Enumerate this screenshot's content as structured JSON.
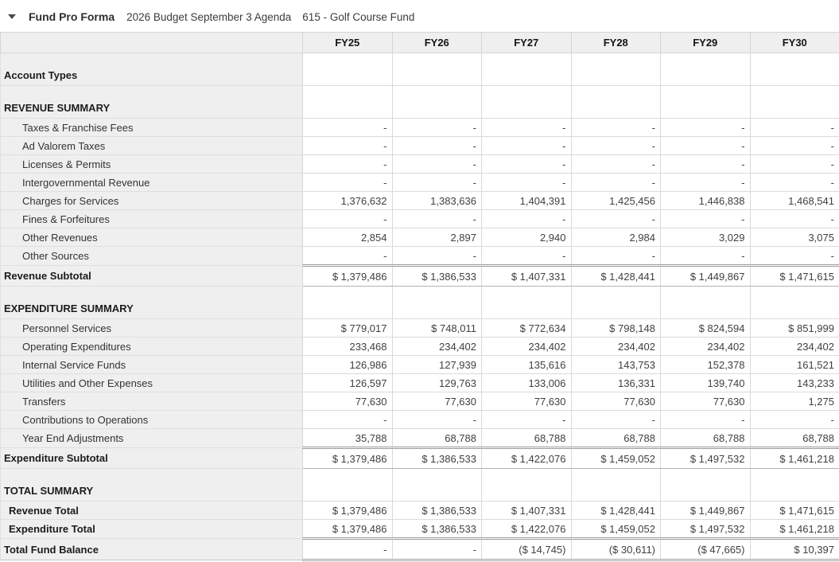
{
  "header": {
    "collapse_icon": "triangle-down",
    "title": "Fund Pro Forma",
    "budget_name": "2026 Budget September 3 Agenda",
    "fund_name": "615 - Golf Course Fund"
  },
  "colors": {
    "label_column_bg": "#efefef",
    "header_row_bg": "#efefef",
    "grid_border": "#d9d9d9",
    "rule_border": "#9c9c9c",
    "text": "#3c3c3c"
  },
  "table": {
    "columns": [
      "FY25",
      "FY26",
      "FY27",
      "FY28",
      "FY29",
      "FY30"
    ],
    "rows": [
      {
        "type": "section",
        "label": "Account Types",
        "values": [
          "",
          "",
          "",
          "",
          "",
          ""
        ]
      },
      {
        "type": "section",
        "label": "REVENUE SUMMARY",
        "values": [
          "",
          "",
          "",
          "",
          "",
          ""
        ]
      },
      {
        "type": "item",
        "label": "Taxes & Franchise Fees",
        "values": [
          "-",
          "-",
          "-",
          "-",
          "-",
          "-"
        ]
      },
      {
        "type": "item",
        "label": "Ad Valorem Taxes",
        "values": [
          "-",
          "-",
          "-",
          "-",
          "-",
          "-"
        ]
      },
      {
        "type": "item",
        "label": "Licenses & Permits",
        "values": [
          "-",
          "-",
          "-",
          "-",
          "-",
          "-"
        ]
      },
      {
        "type": "item",
        "label": "Intergovernmental Revenue",
        "values": [
          "-",
          "-",
          "-",
          "-",
          "-",
          "-"
        ]
      },
      {
        "type": "item",
        "label": "Charges for Services",
        "values": [
          "1,376,632",
          "1,383,636",
          "1,404,391",
          "1,425,456",
          "1,446,838",
          "1,468,541"
        ]
      },
      {
        "type": "item",
        "label": "Fines & Forfeitures",
        "values": [
          "-",
          "-",
          "-",
          "-",
          "-",
          "-"
        ]
      },
      {
        "type": "item",
        "label": "Other Revenues",
        "values": [
          "2,854",
          "2,897",
          "2,940",
          "2,984",
          "3,029",
          "3,075"
        ]
      },
      {
        "type": "item",
        "label": "Other Sources",
        "values": [
          "-",
          "-",
          "-",
          "-",
          "-",
          "-"
        ]
      },
      {
        "type": "subtotal",
        "label": "Revenue Subtotal",
        "values": [
          "$ 1,379,486",
          "$ 1,386,533",
          "$ 1,407,331",
          "$ 1,428,441",
          "$ 1,449,867",
          "$ 1,471,615"
        ]
      },
      {
        "type": "section",
        "label": "EXPENDITURE SUMMARY",
        "values": [
          "",
          "",
          "",
          "",
          "",
          ""
        ]
      },
      {
        "type": "item",
        "label": "Personnel Services",
        "values": [
          "$ 779,017",
          "$ 748,011",
          "$ 772,634",
          "$ 798,148",
          "$ 824,594",
          "$ 851,999"
        ]
      },
      {
        "type": "item",
        "label": "Operating Expenditures",
        "values": [
          "233,468",
          "234,402",
          "234,402",
          "234,402",
          "234,402",
          "234,402"
        ]
      },
      {
        "type": "item",
        "label": "Internal Service Funds",
        "values": [
          "126,986",
          "127,939",
          "135,616",
          "143,753",
          "152,378",
          "161,521"
        ]
      },
      {
        "type": "item",
        "label": "Utilities and Other Expenses",
        "values": [
          "126,597",
          "129,763",
          "133,006",
          "136,331",
          "139,740",
          "143,233"
        ]
      },
      {
        "type": "item",
        "label": "Transfers",
        "values": [
          "77,630",
          "77,630",
          "77,630",
          "77,630",
          "77,630",
          "1,275"
        ]
      },
      {
        "type": "item",
        "label": "Contributions to Operations",
        "values": [
          "-",
          "-",
          "-",
          "-",
          "-",
          "-"
        ]
      },
      {
        "type": "item",
        "label": "Year End Adjustments",
        "values": [
          "35,788",
          "68,788",
          "68,788",
          "68,788",
          "68,788",
          "68,788"
        ]
      },
      {
        "type": "subtotal",
        "label": "Expenditure Subtotal",
        "values": [
          "$ 1,379,486",
          "$ 1,386,533",
          "$ 1,422,076",
          "$ 1,459,052",
          "$ 1,497,532",
          "$ 1,461,218"
        ]
      },
      {
        "type": "section",
        "label": "TOTAL SUMMARY",
        "values": [
          "",
          "",
          "",
          "",
          "",
          ""
        ]
      },
      {
        "type": "total-item",
        "label": "Revenue Total",
        "values": [
          "$ 1,379,486",
          "$ 1,386,533",
          "$ 1,407,331",
          "$ 1,428,441",
          "$ 1,449,867",
          "$ 1,471,615"
        ]
      },
      {
        "type": "total-item",
        "label": "Expenditure Total",
        "values": [
          "$ 1,379,486",
          "$ 1,386,533",
          "$ 1,422,076",
          "$ 1,459,052",
          "$ 1,497,532",
          "$ 1,461,218"
        ]
      },
      {
        "type": "grand",
        "label": "Total Fund Balance",
        "values": [
          "-",
          "-",
          "($ 14,745)",
          "($ 30,611)",
          "($ 47,665)",
          "$ 10,397"
        ]
      }
    ]
  }
}
